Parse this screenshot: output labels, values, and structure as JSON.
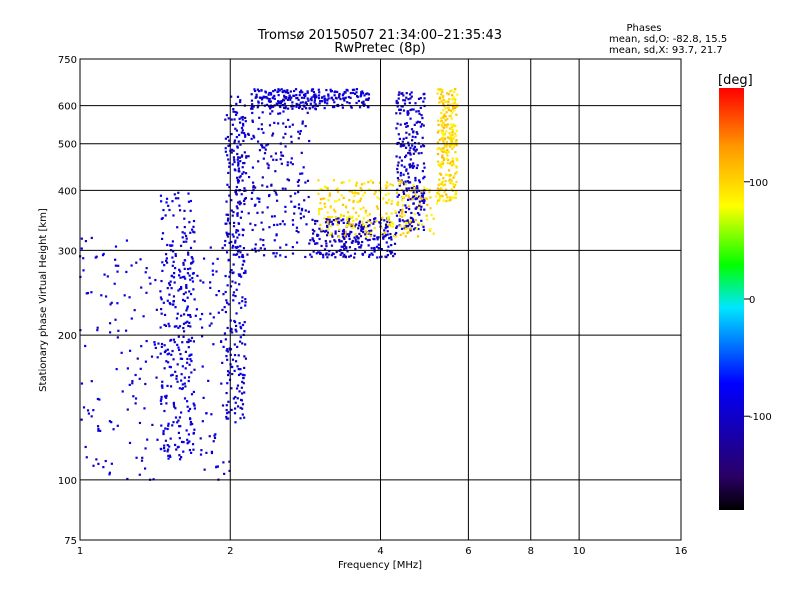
{
  "chart_data": {
    "type": "scatter",
    "title": "Tromsø 20150507 21:34:00–21:35:43",
    "subtitle": "RwPretec (8p)",
    "stats": {
      "heading": "Phases",
      "line1": "mean, sd,O: -82.8, 15.5",
      "line2": "mean, sd,X:  93.7, 21.7"
    },
    "xlabel": "Frequency [MHz]",
    "ylabel": "Stationary phase Virtual Height [km]",
    "x_scale": "log",
    "y_scale": "log",
    "xlim": [
      1,
      16
    ],
    "ylim": [
      75,
      750
    ],
    "x_ticks": [
      1,
      2,
      4,
      6,
      8,
      10,
      16
    ],
    "x_tick_labels": [
      "1",
      "2",
      "4",
      "6",
      "8",
      "10",
      "16"
    ],
    "y_ticks": [
      75,
      100,
      200,
      300,
      400,
      500,
      600,
      750
    ],
    "y_tick_labels": [
      "75",
      "100",
      "200",
      "300",
      "400",
      "500",
      "600",
      "750"
    ],
    "grid": true,
    "colorbar": {
      "label": "[deg]",
      "range": [
        -180,
        180
      ],
      "ticks": [
        100,
        0,
        -100
      ],
      "tick_labels": [
        "100",
        "0",
        "-100"
      ]
    },
    "colormap_stops": [
      "#000000",
      "#2a0066",
      "#0000ff",
      "#00e6ff",
      "#00ff00",
      "#ffff00",
      "#ff9900",
      "#ff0000"
    ],
    "series": [
      {
        "freq_range": [
          1.0,
          2.0
        ],
        "height_range": [
          100,
          320
        ],
        "phase": -95
      },
      {
        "freq_range": [
          1.45,
          1.7
        ],
        "height_range": [
          110,
          400
        ],
        "phase": -90
      },
      {
        "freq_range": [
          1.95,
          2.15
        ],
        "height_range": [
          130,
          630
        ],
        "phase": -95
      },
      {
        "freq_range": [
          2.0,
          2.9
        ],
        "height_range": [
          290,
          630
        ],
        "phase": -100
      },
      {
        "freq_range": [
          2.9,
          4.3
        ],
        "height_range": [
          290,
          350
        ],
        "phase": -100
      },
      {
        "freq_range": [
          4.3,
          4.9
        ],
        "height_range": [
          330,
          640
        ],
        "phase": -100
      },
      {
        "freq_range": [
          2.2,
          3.8
        ],
        "height_range": [
          590,
          650
        ],
        "phase": -95
      },
      {
        "freq_range": [
          3.0,
          5.2
        ],
        "height_range": [
          320,
          420
        ],
        "phase": 95
      },
      {
        "freq_range": [
          5.2,
          5.7
        ],
        "height_range": [
          380,
          650
        ],
        "phase": 100
      }
    ]
  }
}
